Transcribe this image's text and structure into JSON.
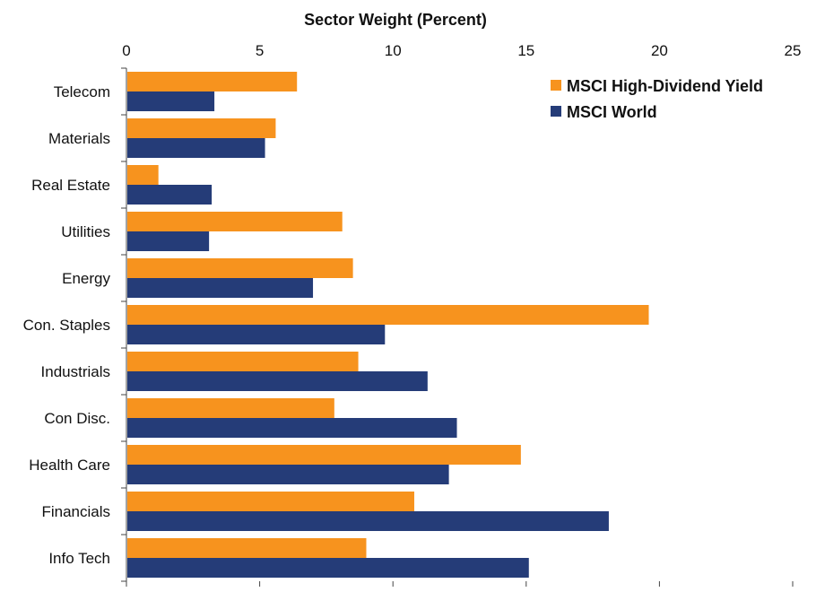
{
  "chart_data": {
    "type": "bar",
    "orientation": "horizontal",
    "title": "Sector Weight (Percent)",
    "xlabel": "Sector Weight (Percent)",
    "ylabel": "",
    "xlim": [
      0,
      25
    ],
    "xticks": [
      0,
      5,
      10,
      15,
      20,
      25
    ],
    "grid": false,
    "legend_position": "top-right",
    "categories": [
      "Telecom",
      "Materials",
      "Real Estate",
      "Utilities",
      "Energy",
      "Con. Staples",
      "Industrials",
      "Con Disc.",
      "Health Care",
      "Financials",
      "Info Tech"
    ],
    "series": [
      {
        "name": "MSCI High-Dividend Yield",
        "color": "#f7931e",
        "values": [
          6.4,
          5.6,
          1.2,
          8.1,
          8.5,
          19.6,
          8.7,
          7.8,
          14.8,
          10.8,
          9.0
        ]
      },
      {
        "name": "MSCI World",
        "color": "#253c78",
        "values": [
          3.3,
          5.2,
          3.2,
          3.1,
          7.0,
          9.7,
          11.3,
          12.4,
          12.1,
          18.1,
          15.1
        ]
      }
    ]
  }
}
